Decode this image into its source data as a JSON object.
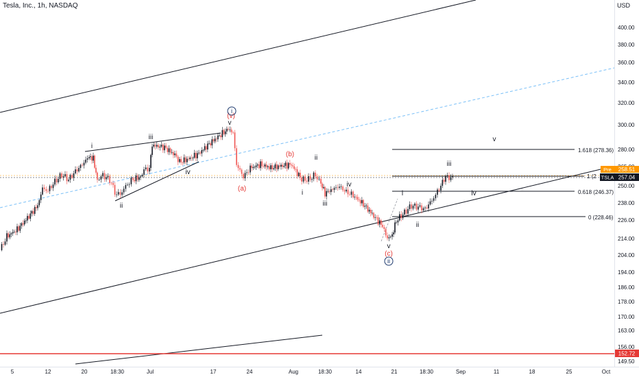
{
  "header": {
    "title": "Tesla, Inc., 1h, NASDAQ",
    "currency": "USD"
  },
  "chart_data": {
    "type": "candlestick",
    "symbol": "TSLA",
    "price_axis": {
      "ticks": [
        "400.00",
        "380.00",
        "360.00",
        "340.00",
        "320.00",
        "300.00",
        "280.00",
        "265.00",
        "250.00",
        "238.00",
        "226.00",
        "214.00",
        "204.00",
        "194.00",
        "186.00",
        "178.00",
        "170.00",
        "163.00",
        "156.00",
        "149.50"
      ],
      "scale": "log"
    },
    "time_axis": {
      "ticks": [
        "5",
        "12",
        "20",
        "18:30",
        "Jul",
        "17",
        "24",
        "Aug",
        "18:30",
        "14",
        "21",
        "18:30",
        "Sep",
        "11",
        "18",
        "25",
        "Oct"
      ]
    },
    "price_labels": {
      "pre_label": "Pre",
      "pre_value": "258.51",
      "last_symbol": "TSLA",
      "last_value": "257.04",
      "red_line_value": "152.72"
    },
    "fib_levels": [
      {
        "label": "1.618 (278.36)"
      },
      {
        "label": "1 (2"
      },
      {
        "label": "0.618 (246.37)"
      },
      {
        "label": "0 (228.46)"
      }
    ],
    "wave_labels": {
      "black": [
        "i",
        "ii",
        "iii",
        "iv",
        "v",
        "i",
        "ii",
        "iii",
        "iv",
        "v",
        "i",
        "ii",
        "iii",
        "iv",
        "v",
        "i",
        "ii",
        "iii",
        "iv",
        "v"
      ],
      "red": [
        "(v)",
        "(a)",
        "(b)",
        "(c)"
      ],
      "circled": [
        "i",
        "ii"
      ]
    },
    "colors": {
      "up": "#131722",
      "down": "#ef5350",
      "wave_red": "#e53935",
      "trend_blue": "#2196f3",
      "pre_orange": "#ff9800"
    }
  }
}
